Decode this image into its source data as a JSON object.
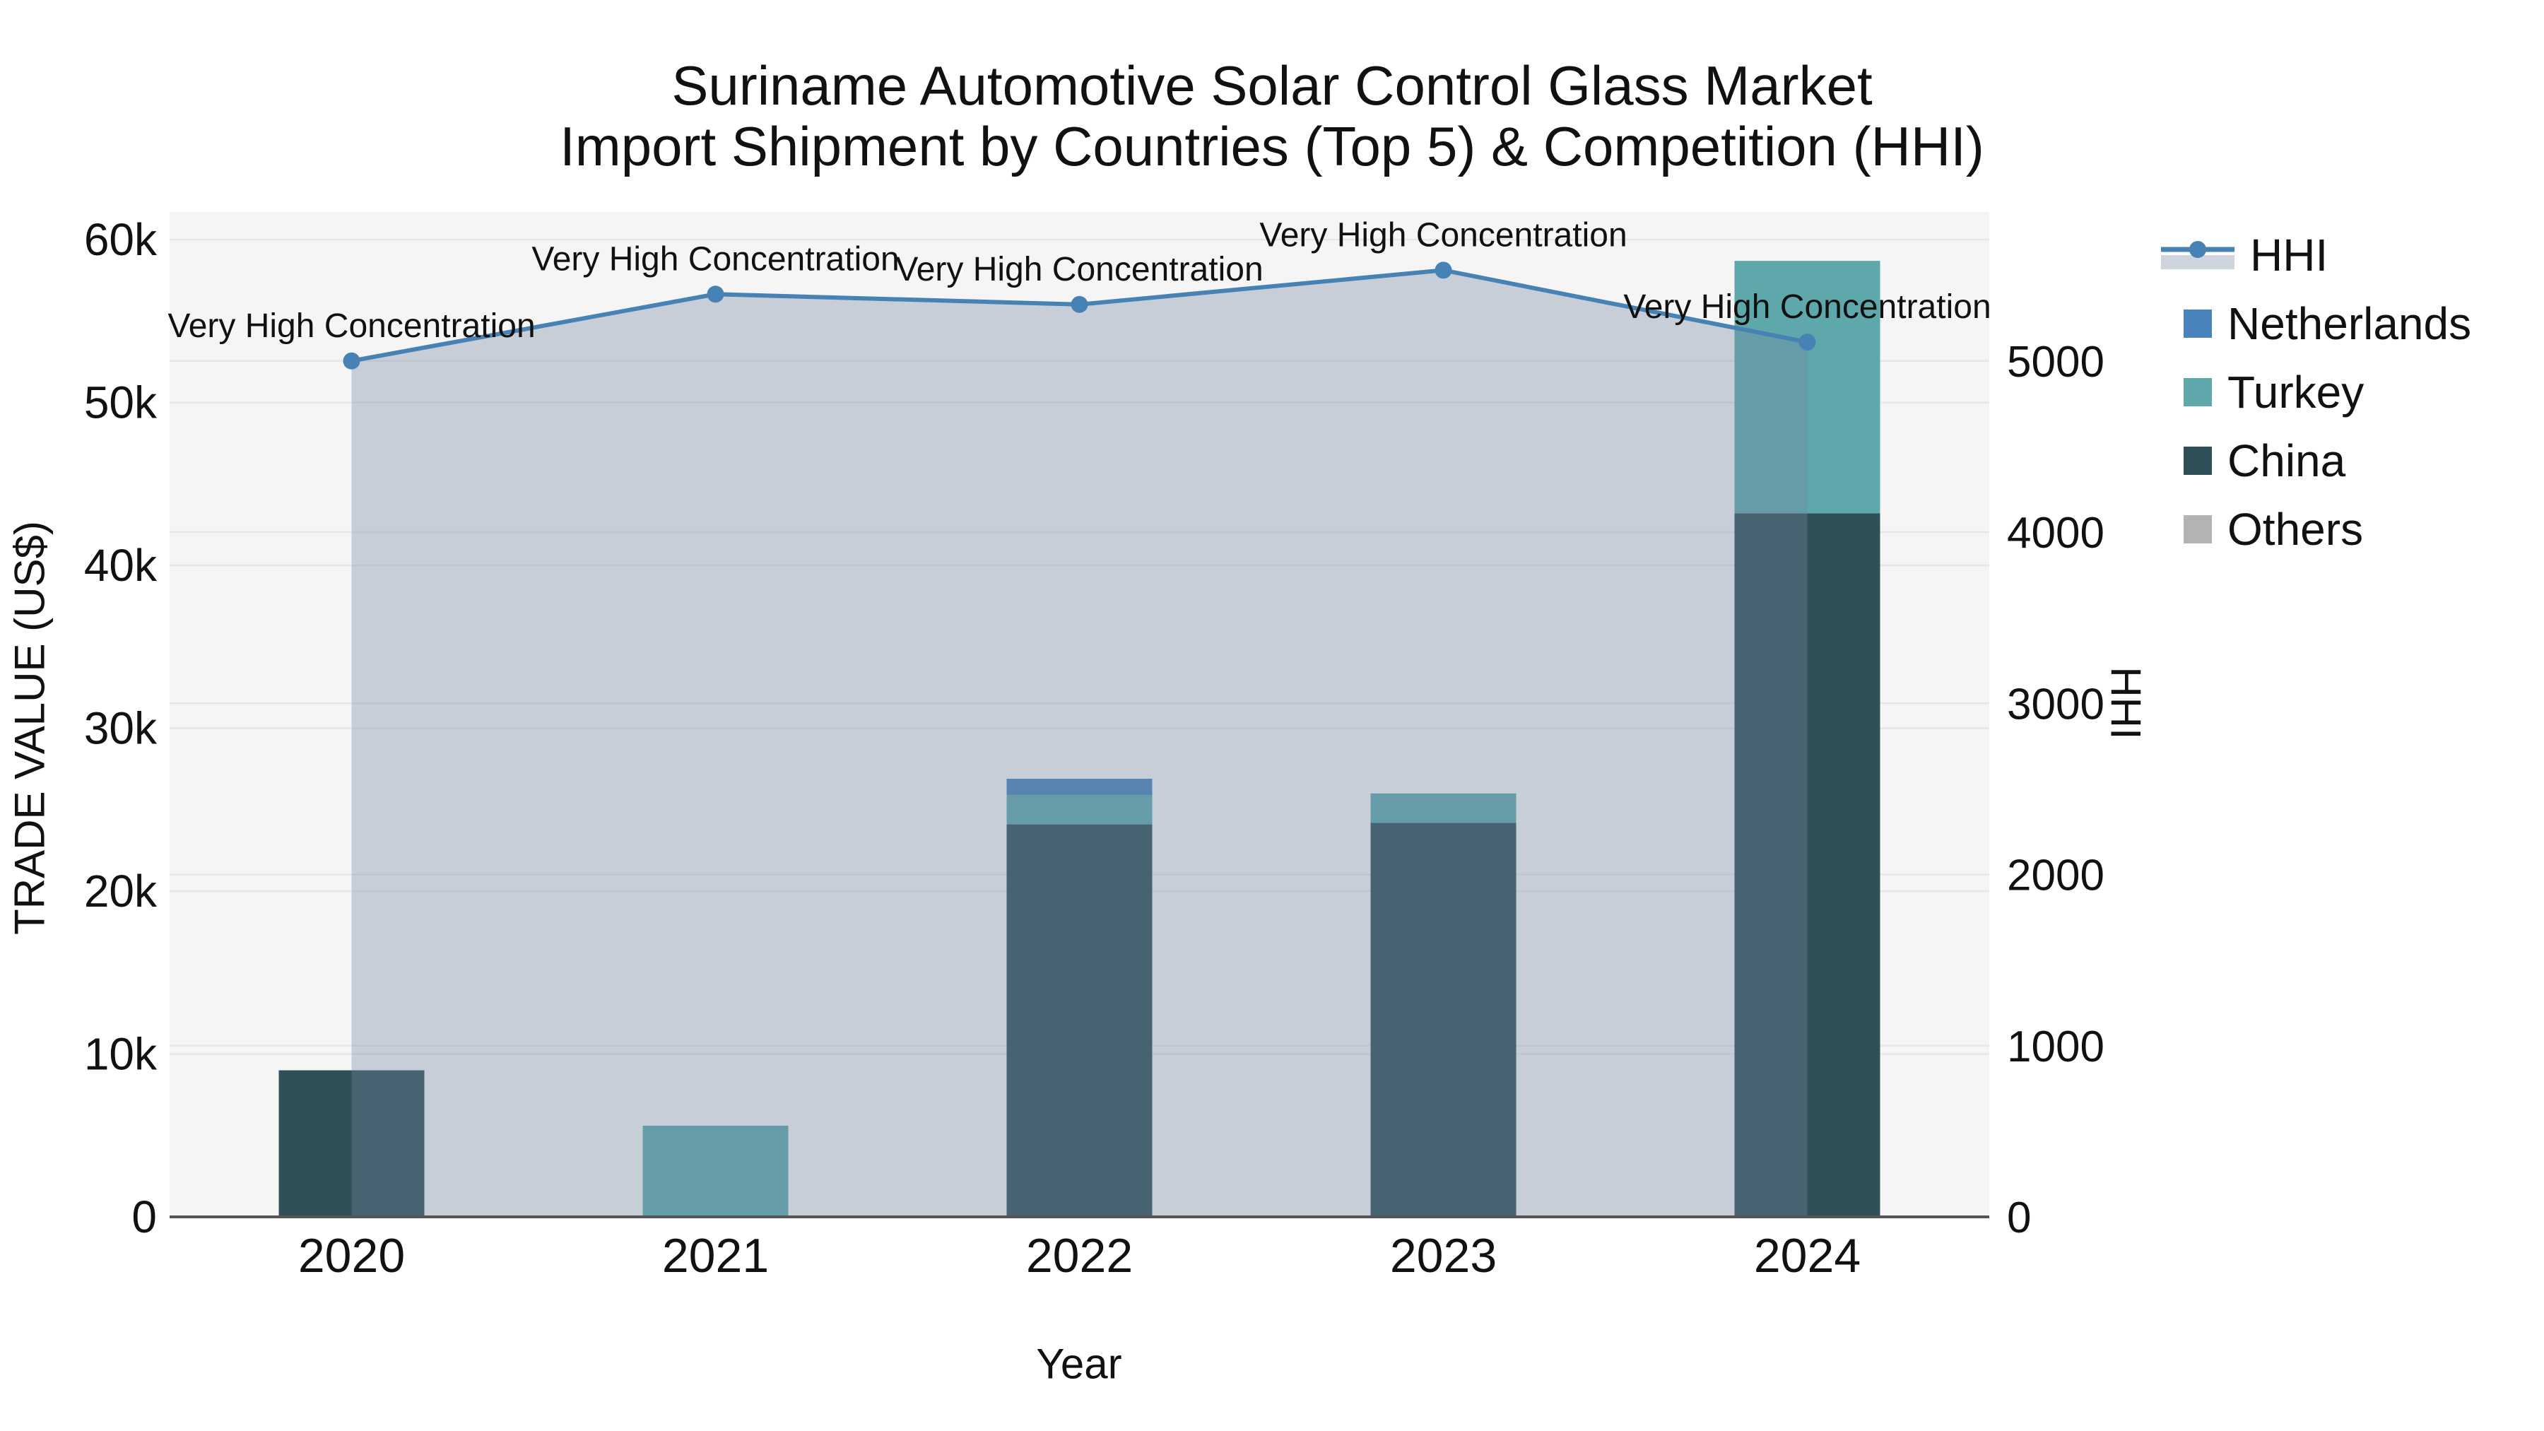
{
  "title": {
    "line1": "Suriname Automotive Solar Control Glass Market",
    "line2": "Import Shipment by Countries (Top 5) & Competition (HHI)"
  },
  "chart_data": {
    "type": "bar+line-dual-axis",
    "categories": [
      "2020",
      "2021",
      "2022",
      "2023",
      "2024"
    ],
    "x_label": "Year",
    "bar_series": [
      {
        "name": "Netherlands",
        "color": "#4983bb",
        "values": [
          0,
          0,
          1000,
          0,
          0
        ]
      },
      {
        "name": "Turkey",
        "color": "#5ea7ab",
        "values": [
          0,
          5600,
          1800,
          1800,
          15500
        ]
      },
      {
        "name": "China",
        "color": "#2e5056",
        "values": [
          9000,
          0,
          24100,
          24200,
          43200
        ]
      },
      {
        "name": "Others",
        "color": "#b3b3b3",
        "values": [
          0,
          0,
          0,
          0,
          0
        ]
      }
    ],
    "stack_order_bottom_to_top": [
      "China",
      "Turkey",
      "Netherlands",
      "Others"
    ],
    "line_series": {
      "name": "HHI",
      "color": "#4682b4",
      "area_fill": "rgba(118,134,164,0.35)",
      "axis": "right",
      "values": [
        5000,
        5390,
        5330,
        5530,
        5110
      ]
    },
    "annotations": [
      "Very High Concentration",
      "Very High Concentration",
      "Very High Concentration",
      "Very High Concentration",
      "Very High Concentration"
    ],
    "y_left": {
      "label": "TRADE VALUE (US$)",
      "max": 61700,
      "ticks": [
        0,
        10000,
        20000,
        30000,
        40000,
        50000,
        60000
      ],
      "tick_labels": [
        "0",
        "10k",
        "20k",
        "30k",
        "40k",
        "50k",
        "60k"
      ]
    },
    "y_right": {
      "label": "HHI",
      "max": 5870,
      "ticks": [
        0,
        1000,
        2000,
        3000,
        4000,
        5000
      ],
      "tick_labels": [
        "0",
        "1000",
        "2000",
        "3000",
        "4000",
        "5000"
      ]
    },
    "legend_order": [
      "HHI",
      "Netherlands",
      "Turkey",
      "China",
      "Others"
    ],
    "colors": {
      "plot_bg": "#f5f5f5",
      "grid": "#e6e6e6",
      "axis_line": "#555555",
      "annotation_text": "#111111"
    }
  }
}
